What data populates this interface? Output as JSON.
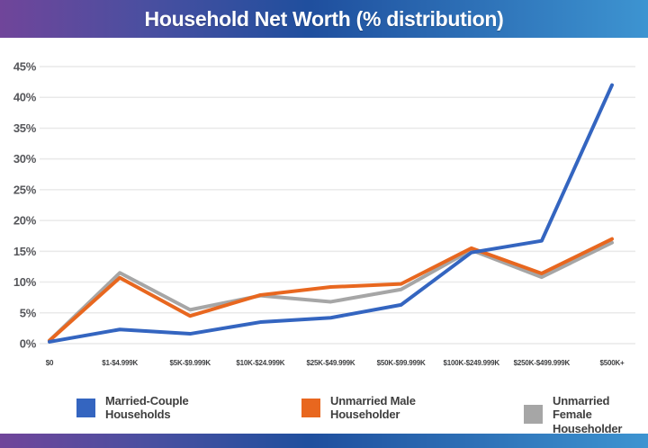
{
  "header": {
    "title": "Household Net Worth (% distribution)"
  },
  "colors": {
    "header_gradient_left": "#70459a",
    "header_gradient_mid": "#1f4f9e",
    "header_gradient_right": "#3d94d1",
    "gridline": "#e9e9e9",
    "y_axis_text": "#55565a",
    "x_axis_text": "#3f4042",
    "legend_text": "#3f3f3f",
    "background": "#ffffff"
  },
  "chart_data": {
    "type": "line",
    "title": "Household Net Worth (% distribution)",
    "categories": [
      "$0",
      "$1-$4.999K",
      "$5K-$9.999K",
      "$10K-$24.999K",
      "$25K-$49.999K",
      "$50K-$99.999K",
      "$100K-$249.999K",
      "$250K-$499.999K",
      "$500K+"
    ],
    "series": [
      {
        "name": "Married-Couple Households",
        "color": "#3465c0",
        "values": [
          0.3,
          2.3,
          1.6,
          3.5,
          4.2,
          6.3,
          14.8,
          16.7,
          42.0
        ]
      },
      {
        "name": "Unmarried Male Householder",
        "color": "#e8671f",
        "values": [
          0.5,
          10.7,
          4.5,
          7.9,
          9.2,
          9.7,
          15.5,
          11.4,
          17.0
        ]
      },
      {
        "name": "Unmarried Female Householder",
        "color": "#a6a6a6",
        "values": [
          0.5,
          11.5,
          5.5,
          7.8,
          6.8,
          8.8,
          15.2,
          10.8,
          16.4
        ]
      }
    ],
    "ylim": [
      0,
      45
    ],
    "ytick_step": 5,
    "ytick_labels": [
      "0%",
      "5%",
      "10%",
      "15%",
      "20%",
      "25%",
      "30%",
      "35%",
      "40%",
      "45%"
    ],
    "xlabel": "",
    "ylabel": "",
    "grid": "horizontal",
    "legend_position": "bottom"
  }
}
